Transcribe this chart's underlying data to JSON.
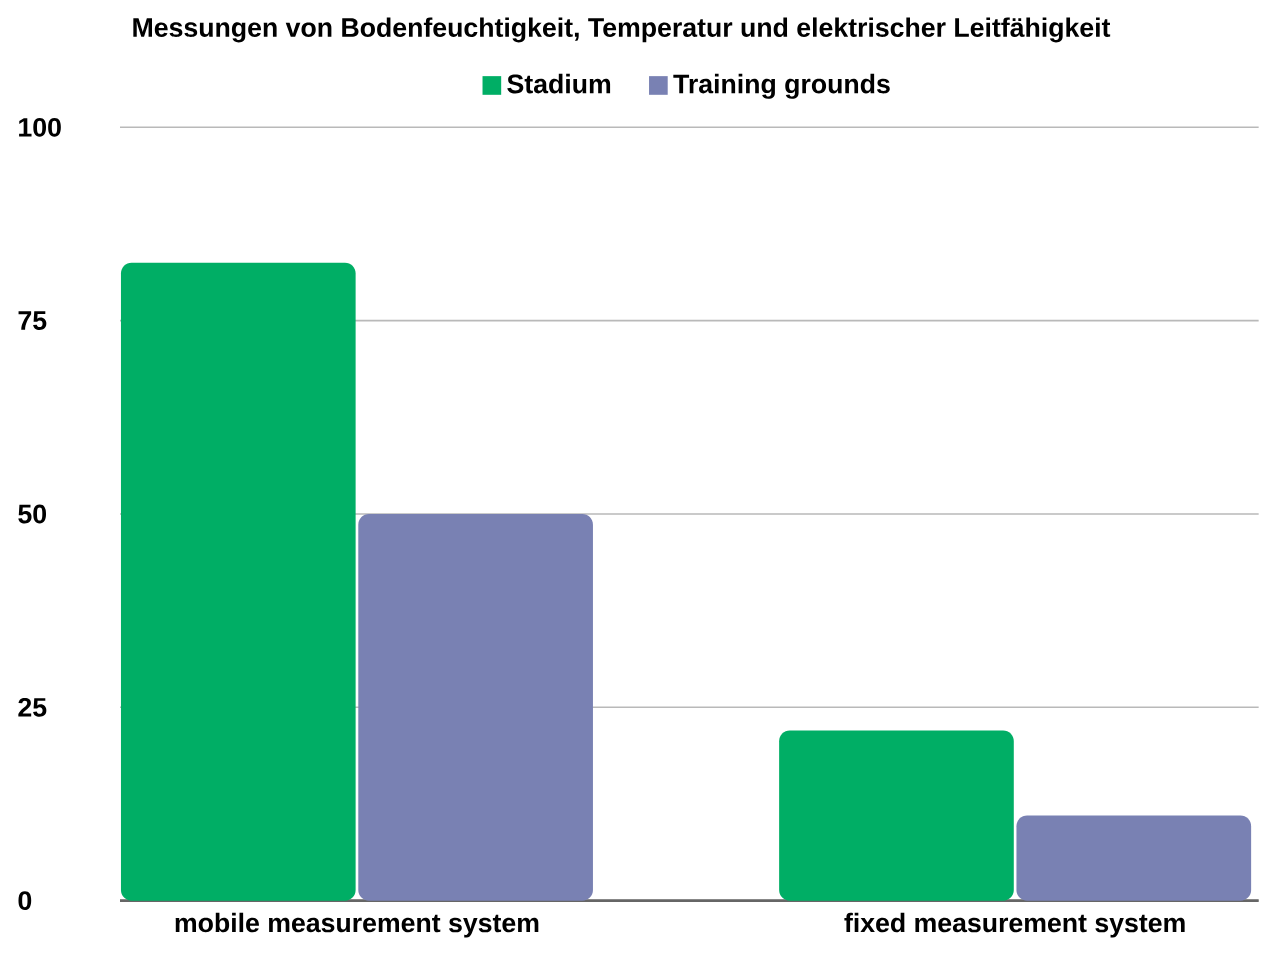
{
  "chart_data": {
    "type": "bar",
    "title": "Messungen von Bodenfeuchtigkeit, Temperatur und elektrischer Leitfähigkeit",
    "categories": [
      "mobile measurement system",
      "fixed measurement system"
    ],
    "series": [
      {
        "name": "Stadium",
        "color": "#00ae65",
        "values": [
          82.5,
          22
        ]
      },
      {
        "name": "Training grounds",
        "color": "#7981b3",
        "values": [
          50,
          11
        ]
      }
    ],
    "ylim": [
      0,
      100
    ],
    "yticks": [
      0,
      25,
      50,
      75,
      100
    ],
    "grid": "y",
    "legend": "top"
  }
}
